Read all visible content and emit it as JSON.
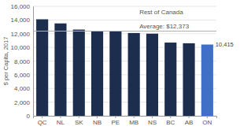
{
  "chart_data": {
    "type": "bar",
    "categories": [
      "QC",
      "NL",
      "SK",
      "NB",
      "PE",
      "MB",
      "NS",
      "BC",
      "AB",
      "ON"
    ],
    "values": [
      14100,
      13500,
      12600,
      12400,
      12400,
      12100,
      12000,
      10700,
      10600,
      10415
    ],
    "colors": [
      "#1c2d4e",
      "#1c2d4e",
      "#1c2d4e",
      "#1c2d4e",
      "#1c2d4e",
      "#1c2d4e",
      "#1c2d4e",
      "#1c2d4e",
      "#1c2d4e",
      "#3f6fc6"
    ],
    "ylabel": "$ per Capita, 2017",
    "ylim": [
      0,
      16000
    ],
    "yticks": [
      0,
      {
        "value": 2000,
        "label": "2,000"
      },
      {
        "value": 4000,
        "label": "4,000"
      },
      {
        "value": 6000,
        "label": "6,000"
      },
      {
        "value": 8000,
        "label": "8,000"
      },
      {
        "value": 10000,
        "label": "10,000"
      },
      {
        "value": 12000,
        "label": "12,000"
      },
      {
        "value": 14000,
        "label": "14,000"
      },
      {
        "value": 16000,
        "label": "16,000"
      }
    ],
    "grid": true,
    "reference_line": {
      "value": 12373,
      "color": "#b0b0b0",
      "labels": [
        "Rest of Canada",
        "Average: $12,373"
      ]
    },
    "annotations": [
      {
        "text": "10,415",
        "category": "ON"
      }
    ]
  }
}
